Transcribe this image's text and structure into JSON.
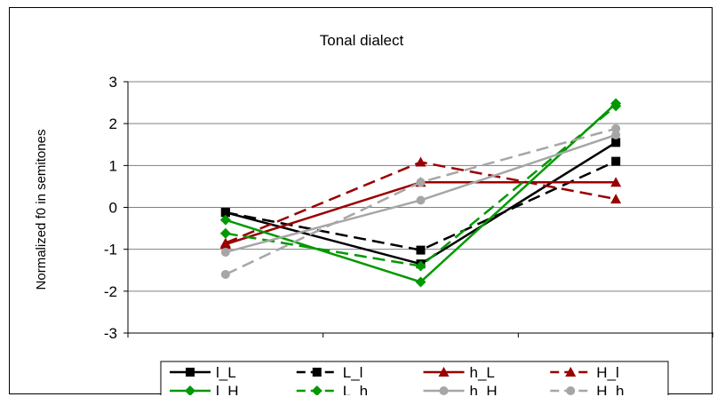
{
  "chart_data": {
    "type": "line",
    "title": "Tonal dialect",
    "xlabel": "",
    "ylabel": "Normalized f0 in semitones",
    "ylim": [
      -3,
      3
    ],
    "yticks": [
      -3,
      -2,
      -1,
      0,
      1,
      2,
      3
    ],
    "ytick_labels": [
      "-3",
      "-2",
      "-1",
      "0",
      "1",
      "2",
      "3"
    ],
    "grid": true,
    "legend_position": "bottom",
    "series": [
      {
        "name": "l_L",
        "color": "#000000",
        "dashed": false,
        "marker": "square",
        "values": [
          -0.12,
          -1.35,
          1.55
        ]
      },
      {
        "name": "L_l",
        "color": "#000000",
        "dashed": true,
        "marker": "square",
        "values": [
          -0.12,
          -1.02,
          1.1
        ]
      },
      {
        "name": "h_L",
        "color": "#990000",
        "dashed": false,
        "marker": "triangle",
        "values": [
          -0.88,
          0.6,
          0.6
        ]
      },
      {
        "name": "H_l",
        "color": "#990000",
        "dashed": true,
        "marker": "triangle",
        "values": [
          -0.85,
          1.08,
          0.2
        ]
      },
      {
        "name": "l_H",
        "color": "#009900",
        "dashed": false,
        "marker": "diamond",
        "values": [
          -0.3,
          -1.78,
          2.48
        ]
      },
      {
        "name": "L_h",
        "color": "#009900",
        "dashed": true,
        "marker": "diamond",
        "values": [
          -0.62,
          -1.4,
          2.42
        ]
      },
      {
        "name": "h_H",
        "color": "#a6a6a6",
        "dashed": false,
        "marker": "circle",
        "values": [
          -1.07,
          0.17,
          1.73
        ]
      },
      {
        "name": "H_h",
        "color": "#a6a6a6",
        "dashed": true,
        "marker": "circle",
        "values": [
          -1.6,
          0.6,
          1.88
        ]
      }
    ]
  }
}
